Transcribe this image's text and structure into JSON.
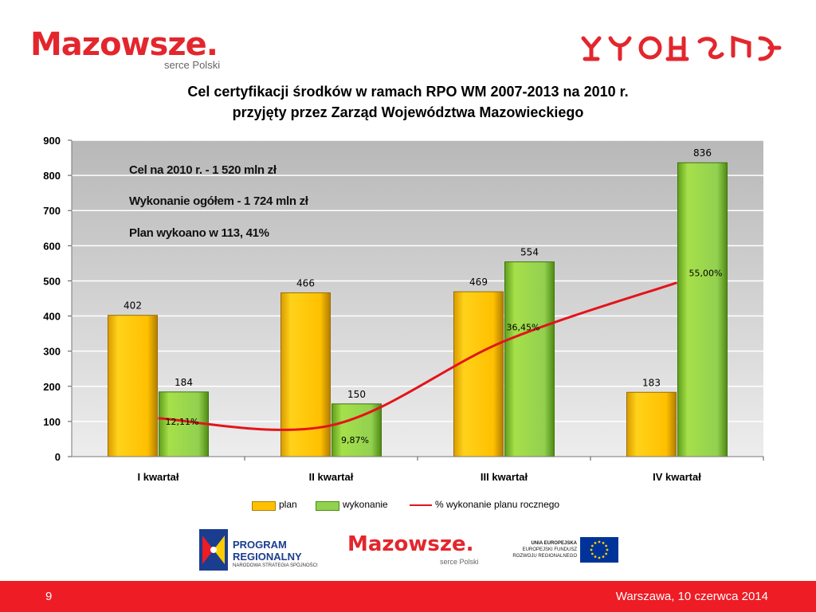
{
  "header": {
    "logo_text": "Mazowsze.",
    "logo_subtitle": "serce Polski",
    "title_line1": "Cel certyfikacji środków w ramach RPO WM 2007-2013 na 2010 r.",
    "title_line2": "przyjęty przez Zarząd Województwa Mazowieckiego"
  },
  "annotations": {
    "line1": "Cel na 2010 r. - 1 520 mln zł",
    "line2": "Wykonanie ogółem - 1 724 mln zł",
    "line3": "Plan wykoano w 113, 41%"
  },
  "chart_data": {
    "type": "bar",
    "categories": [
      "I kwartał",
      "II kwartał",
      "III kwartał",
      "IV kwartał"
    ],
    "series": [
      {
        "name": "plan",
        "values": [
          402,
          466,
          469,
          183
        ],
        "color": "#ffc000",
        "value_labels": [
          "402",
          "466",
          "469",
          "183"
        ]
      },
      {
        "name": "wykonanie",
        "values": [
          184,
          150,
          554,
          836
        ],
        "color": "#92d050",
        "value_labels": [
          "184",
          "150",
          "554",
          "836"
        ]
      },
      {
        "name": "% wykonanie planu rocznego",
        "type": "line",
        "values": [
          12.11,
          9.87,
          36.45,
          55.0
        ],
        "labels": [
          "12,11%",
          "9,87%",
          "36,45%",
          "55,00%"
        ],
        "color": "#e3141b"
      }
    ],
    "y_ticks": [
      "0",
      "100",
      "200",
      "300",
      "400",
      "500",
      "600",
      "700",
      "800",
      "900"
    ],
    "ylim": [
      0,
      900
    ],
    "grid": true,
    "legend_position": "bottom"
  },
  "footer": {
    "program_line1": "PROGRAM",
    "program_line2": "REGIONALNY",
    "program_line3": "NARODOWA STRATEGIA SPÓJNOŚCI",
    "logo_text": "Mazowsze.",
    "logo_subtitle": "serce Polski",
    "eu_line1": "UNIA EUROPEJSKA",
    "eu_line2": "EUROPEJSKI FUNDUSZ",
    "eu_line3": "ROZWOJU REGIONALNEGO",
    "page_number": "9",
    "date_text": "Warszawa,    10 czerwca 2014"
  }
}
